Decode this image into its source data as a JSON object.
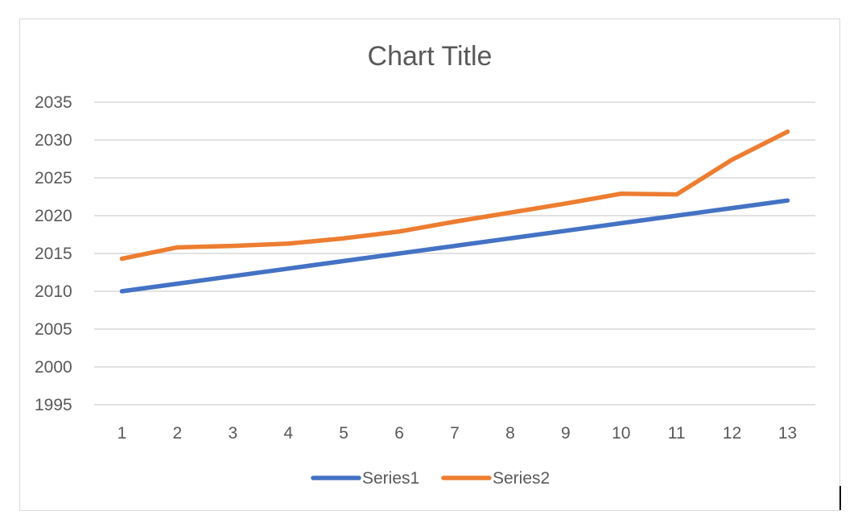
{
  "chart_data": {
    "type": "line",
    "title": "Chart Title",
    "categories": [
      "1",
      "2",
      "3",
      "4",
      "5",
      "6",
      "7",
      "8",
      "9",
      "10",
      "11",
      "12",
      "13"
    ],
    "series": [
      {
        "name": "Series1",
        "color": "#4472C4",
        "values": [
          2010,
          2011,
          2012,
          2013,
          2014,
          2015,
          2016,
          2017,
          2018,
          2019,
          2020,
          2021,
          2022
        ]
      },
      {
        "name": "Series2",
        "color": "#ED7D31",
        "values": [
          2014.3,
          2015.8,
          2016,
          2016.3,
          2017,
          2017.9,
          2019.2,
          2020.4,
          2021.6,
          2022.9,
          2022.8,
          2027.4,
          2031.1
        ]
      }
    ],
    "yticks": [
      "1995",
      "2000",
      "2005",
      "2010",
      "2015",
      "2020",
      "2025",
      "2030",
      "2035"
    ],
    "ylim": [
      1995,
      2035
    ],
    "grid": true,
    "legend_position": "bottom"
  }
}
